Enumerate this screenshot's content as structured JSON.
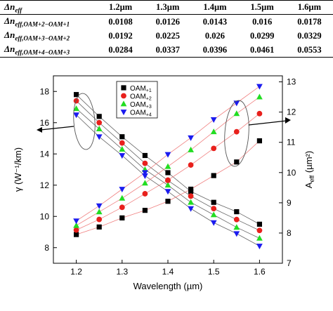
{
  "table": {
    "header_symbol": "Δn",
    "header_sub": "eff",
    "columns": [
      "1.2µm",
      "1.3µm",
      "1.4µm",
      "1.5µm",
      "1.6µm"
    ],
    "rows": [
      {
        "label_main": "Δn",
        "label_sub": "eff,OAM+2−OAM+1",
        "values": [
          "0.0108",
          "0.0126",
          "0.0143",
          "0.016",
          "0.0178"
        ]
      },
      {
        "label_main": "Δn",
        "label_sub": "eff,OAM+3−OAM+2",
        "values": [
          "0.0192",
          "0.0225",
          "0.026",
          "0.0299",
          "0.0329"
        ]
      },
      {
        "label_main": "Δn",
        "label_sub": "eff,OAM+4−OAM+3",
        "values": [
          "0.0284",
          "0.0337",
          "0.0396",
          "0.0461",
          "0.0553"
        ]
      }
    ]
  },
  "chart_data": {
    "type": "scatter",
    "x": [
      1.2,
      1.25,
      1.3,
      1.35,
      1.4,
      1.45,
      1.5,
      1.55,
      1.6
    ],
    "xlabel": "Wavelength (µm)",
    "ylabel_left": "γ (W⁻¹/km)",
    "ylabel_right": "A",
    "ylabel_right_sub": "eff",
    "ylabel_right_unit": " (µm²)",
    "xlim": [
      1.15,
      1.65
    ],
    "ylim_left": [
      7,
      19
    ],
    "ylim_right": [
      7,
      13.2
    ],
    "xticks": [
      "1.2",
      "1.3",
      "1.4",
      "1.5",
      "1.6"
    ],
    "yticks_left": [
      "8",
      "10",
      "12",
      "14",
      "16",
      "18"
    ],
    "yticks_right": [
      "7",
      "8",
      "9",
      "10",
      "11",
      "12",
      "13"
    ],
    "legend_position": "top-center",
    "series_gamma": [
      {
        "name": "OAM+1",
        "color": "#000000",
        "marker": "square",
        "values": [
          17.8,
          16.4,
          15.1,
          13.9,
          12.8,
          11.6,
          10.9,
          10.3,
          9.5
        ]
      },
      {
        "name": "OAM+2",
        "color": "#e8201c",
        "marker": "circle",
        "values": [
          17.4,
          16.0,
          14.7,
          13.4,
          12.3,
          11.3,
          10.5,
          9.8,
          9.1
        ]
      },
      {
        "name": "OAM+3",
        "color": "#22dd22",
        "marker": "triangle-up",
        "values": [
          16.9,
          15.6,
          14.3,
          13.0,
          12.0,
          10.9,
          10.1,
          9.3,
          8.6
        ]
      },
      {
        "name": "OAM+4",
        "color": "#1b1bef",
        "marker": "triangle-down",
        "values": [
          16.5,
          15.1,
          13.9,
          12.6,
          11.6,
          10.5,
          9.6,
          8.9,
          8.1
        ]
      }
    ],
    "series_aeff": [
      {
        "name": "OAM+1",
        "values": [
          7.95,
          8.2,
          8.5,
          8.75,
          9.05,
          9.45,
          9.9,
          10.35,
          11.05
        ]
      },
      {
        "name": "OAM+2",
        "values": [
          8.1,
          8.45,
          8.85,
          9.3,
          9.75,
          10.25,
          10.8,
          11.35,
          11.95
        ]
      },
      {
        "name": "OAM+3",
        "values": [
          8.25,
          8.7,
          9.15,
          9.65,
          10.2,
          10.75,
          11.35,
          11.95,
          12.5
        ]
      },
      {
        "name": "OAM+4",
        "values": [
          8.4,
          8.9,
          9.45,
          10.0,
          10.6,
          11.15,
          11.75,
          12.3,
          12.85
        ]
      }
    ]
  }
}
